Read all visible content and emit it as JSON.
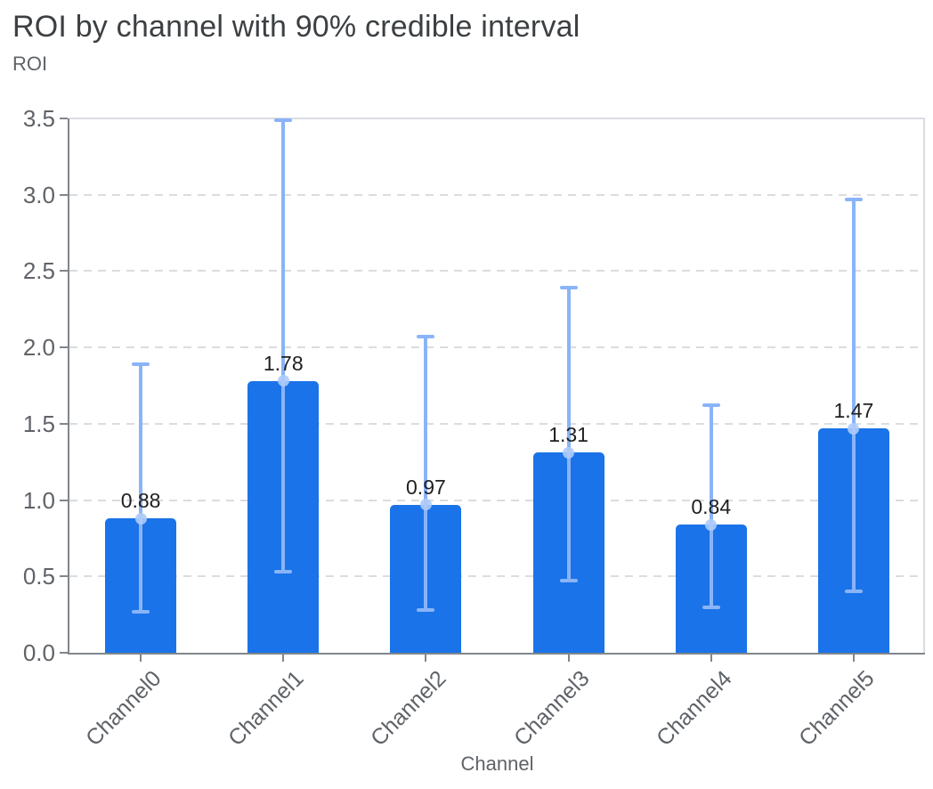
{
  "header": {
    "title": "ROI by channel with 90% credible interval",
    "subtitle": "ROI"
  },
  "chart_data": {
    "type": "bar",
    "title": "ROI by channel with 90% credible interval",
    "xlabel": "Channel",
    "ylabel": "ROI",
    "categories": [
      "Channel0",
      "Channel1",
      "Channel2",
      "Channel3",
      "Channel4",
      "Channel5"
    ],
    "values": [
      0.88,
      1.78,
      0.97,
      1.31,
      0.84,
      1.47
    ],
    "value_labels": [
      "0.88",
      "1.78",
      "0.97",
      "1.31",
      "0.84",
      "1.47"
    ],
    "error_interval": "90% credible interval",
    "ci_lower": [
      0.27,
      0.53,
      0.28,
      0.47,
      0.3,
      0.4
    ],
    "ci_upper": [
      1.89,
      3.49,
      2.07,
      2.39,
      1.62,
      2.97
    ],
    "ylim": [
      0,
      3.5
    ],
    "yticks": [
      0.0,
      0.5,
      1.0,
      1.5,
      2.0,
      2.5,
      3.0,
      3.5
    ],
    "ytick_labels": [
      "0.0",
      "0.5",
      "1.0",
      "1.5",
      "2.0",
      "2.5",
      "3.0",
      "3.5"
    ],
    "grid": "horizontal-dashed",
    "legend": "none",
    "colors": {
      "bar": "#1a73e8",
      "error_bar": "#8ab4f8",
      "marker": "rgba(174,203,250,0.9)",
      "grid": "#dadce0",
      "axis": "#80868b",
      "title_text": "#3c4043",
      "label_text": "#5f6368",
      "value_text": "#1f1f1f"
    }
  }
}
